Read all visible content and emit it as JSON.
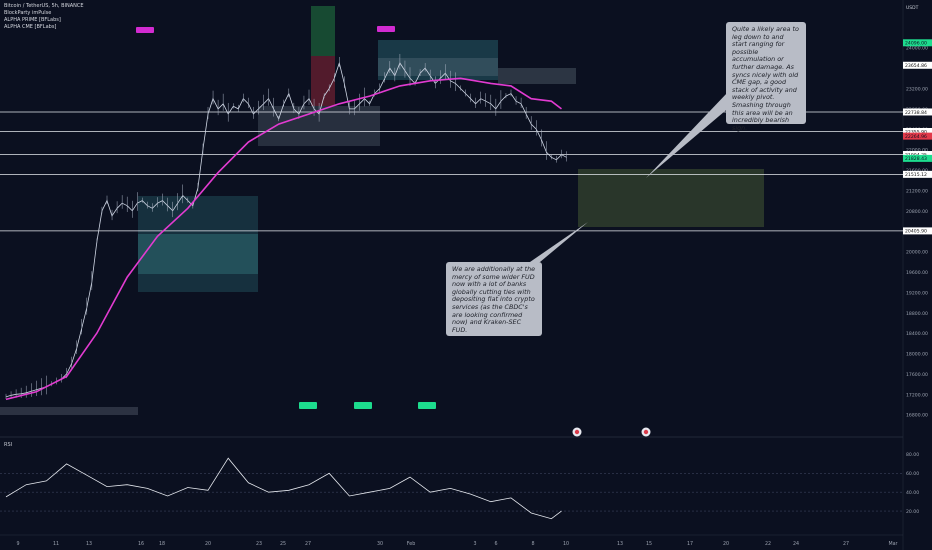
{
  "header": {
    "symbol": "Bitcoin / TetherUS, 5h, BINANCE",
    "indicators": [
      "BlockParty imPulse",
      "ALPHA PRIME [BFLabs]",
      "ALPHA CME [BFLabs]"
    ]
  },
  "currency": "USDT",
  "notes": {
    "top": "Quite a likely area to leg down to and start ranging for possible accumulation or further damage. As syncs nicely with old CME gap, a good stack of activity and weekly pivot. Smashing through this area will be an incredibly bearish sign.",
    "bottom": "We are additionally at the mercy of some wider FUD now with a lot of banks globally cutting ties with depositing fiat into crypto services (as the CBDC's are looking confirmed now) and Kraken-SEC FUD."
  },
  "rsi_label": "RSI",
  "chart_data": {
    "type": "line",
    "title": "Bitcoin / TetherUS, 5h, BINANCE",
    "xlabel": "",
    "ylabel": "USDT",
    "ylim": [
      16500,
      24700
    ],
    "x_ticks": [
      "9",
      "11",
      "13",
      "16",
      "18",
      "20",
      "23",
      "25",
      "27",
      "30",
      "Feb",
      "3",
      "6",
      "8",
      "10",
      "13",
      "15",
      "17",
      "20",
      "22",
      "24",
      "27",
      "Mar"
    ],
    "y_ticks": [
      24000,
      23200,
      22800,
      22400,
      22000,
      21600,
      21200,
      20800,
      20400,
      20000,
      19600,
      19200,
      18800,
      18400,
      18000,
      17600,
      17200,
      16800
    ],
    "price_labels": [
      {
        "value": 24096.0,
        "text": "24096.00",
        "color": "#1ddc8e"
      },
      {
        "value": 23654.86,
        "text": "23654.86",
        "color": "#ffffff"
      },
      {
        "value": 22738.84,
        "text": "22738.84",
        "color": "#ffffff"
      },
      {
        "value": 22355.9,
        "text": "22355.90",
        "color": "#ffffff"
      },
      {
        "value": 22264.96,
        "text": "22264.96",
        "color": "#e23a4a"
      },
      {
        "value": 21904.25,
        "text": "21904.25",
        "color": "#ffffff"
      },
      {
        "value": 21828.43,
        "text": "21828.43",
        "color": "#1ddc8e"
      },
      {
        "value": 21515.12,
        "text": "21515.12",
        "color": "#ffffff"
      },
      {
        "value": 20405.9,
        "text": "20405.90",
        "color": "#ffffff"
      }
    ],
    "horizontal_levels": [
      22738.84,
      22355.9,
      21904.25,
      21515.12,
      20405.9
    ],
    "series": [
      {
        "name": "BTCUSDT",
        "color": "#cfd6e4",
        "x": [
          0,
          1,
          2,
          3,
          4,
          5,
          6,
          7,
          8,
          9,
          10,
          11,
          12,
          13,
          14,
          15,
          16,
          17,
          18,
          19,
          20,
          21,
          22,
          23,
          24,
          25,
          26,
          27,
          28,
          29,
          30,
          31,
          32,
          33,
          34,
          35,
          36,
          37,
          38,
          39,
          40,
          41,
          42,
          43,
          44,
          45,
          46,
          47,
          48,
          49,
          50,
          51,
          52,
          53,
          54,
          55,
          56,
          57,
          58,
          59,
          60,
          61,
          62,
          63,
          64,
          65,
          66,
          67,
          68,
          69,
          70,
          71,
          72,
          73,
          74,
          75,
          76,
          77,
          78,
          79,
          80,
          81,
          82,
          83,
          84,
          85,
          86,
          87,
          88,
          89,
          90,
          91,
          92,
          93,
          94,
          95,
          96,
          97,
          98,
          99,
          100,
          101,
          102,
          103,
          104,
          105,
          106,
          107,
          108,
          109,
          110,
          111,
          112,
          113,
          114,
          115
        ],
        "values": [
          17150,
          17180,
          17200,
          17210,
          17230,
          17260,
          17290,
          17320,
          17350,
          17400,
          17450,
          17500,
          17600,
          17800,
          18100,
          18500,
          18900,
          19400,
          20200,
          20800,
          21000,
          20700,
          20850,
          20950,
          20900,
          20800,
          20950,
          21000,
          20900,
          20850,
          20950,
          21000,
          20900,
          20800,
          20950,
          21100,
          21000,
          20900,
          21250,
          22000,
          22700,
          23000,
          22800,
          22900,
          22700,
          22850,
          22800,
          23000,
          22900,
          22700,
          22800,
          22900,
          23000,
          22800,
          22600,
          22900,
          23100,
          22800,
          22700,
          22900,
          23000,
          22800,
          22700,
          23050,
          23200,
          23400,
          23700,
          23300,
          22800,
          22800,
          22900,
          23000,
          22900,
          23100,
          23200,
          23400,
          23600,
          23450,
          23700,
          23550,
          23400,
          23300,
          23500,
          23600,
          23450,
          23300,
          23400,
          23500,
          23350,
          23300,
          23200,
          23100,
          23000,
          22900,
          23000,
          22950,
          22900,
          22800,
          22950,
          23050,
          23100,
          22950,
          22900,
          22700,
          22500,
          22400,
          22200,
          21950,
          21850,
          21800,
          21900,
          21850,
          null,
          null,
          null,
          null
        ]
      },
      {
        "name": "EMA",
        "color": "#e23bd1",
        "x": [
          0,
          6,
          12,
          18,
          24,
          30,
          36,
          42,
          48,
          54,
          60,
          66,
          72,
          78,
          84,
          90,
          96,
          100,
          104,
          108,
          110
        ],
        "values": [
          17100,
          17250,
          17550,
          18400,
          19500,
          20300,
          20850,
          21550,
          22150,
          22500,
          22700,
          22900,
          23050,
          23250,
          23350,
          23400,
          23300,
          23250,
          23000,
          22950,
          22800
        ]
      },
      {
        "name": "RSI",
        "color": "#e6e9ef",
        "x": [
          0,
          4,
          8,
          12,
          16,
          20,
          24,
          28,
          32,
          36,
          40,
          44,
          48,
          52,
          56,
          60,
          64,
          68,
          72,
          76,
          80,
          84,
          88,
          92,
          96,
          100,
          104,
          108,
          110
        ],
        "values": [
          45,
          58,
          62,
          80,
          68,
          56,
          58,
          54,
          46,
          55,
          52,
          86,
          60,
          50,
          52,
          58,
          70,
          46,
          50,
          54,
          66,
          50,
          54,
          48,
          40,
          44,
          28,
          22,
          30
        ]
      }
    ]
  }
}
